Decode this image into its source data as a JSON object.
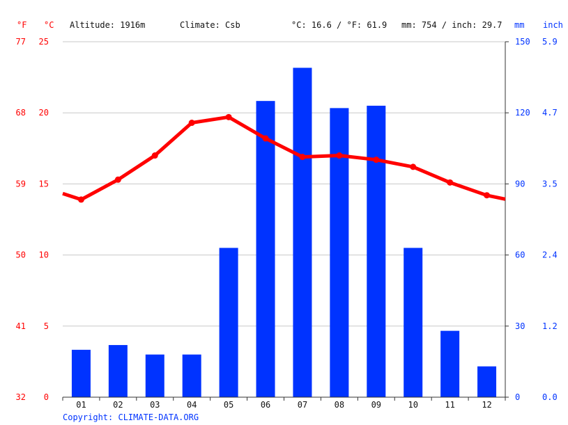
{
  "header": {
    "unit_f": "°F",
    "unit_c": "°C",
    "altitude": "Altitude: 1916m",
    "climate": "Climate: Csb",
    "temp_avg": "°C: 16.6 / °F: 61.9",
    "precip_total": "mm: 754 / inch: 29.7",
    "unit_mm": "mm",
    "unit_inch": "inch"
  },
  "copyright": "Copyright: CLIMATE-DATA.ORG",
  "colors": {
    "temperature": "#ff0000",
    "precipitation": "#0033ff",
    "grid": "#c8c8c8"
  },
  "chart_data": {
    "type": "bar+line",
    "categories": [
      "01",
      "02",
      "03",
      "04",
      "05",
      "06",
      "07",
      "08",
      "09",
      "10",
      "11",
      "12"
    ],
    "series": [
      {
        "type": "bar",
        "axis": "right",
        "unit": "mm",
        "values": [
          20,
          22,
          18,
          18,
          63,
          125,
          139,
          122,
          123,
          63,
          28,
          13
        ]
      },
      {
        "type": "line",
        "axis": "left",
        "unit": "°C",
        "values": [
          13.9,
          15.3,
          17.0,
          19.3,
          19.7,
          18.2,
          16.9,
          17.0,
          16.7,
          16.2,
          15.1,
          14.2
        ]
      }
    ],
    "y_left": {
      "range": [
        0,
        25
      ],
      "ticks_c": [
        "0",
        "5",
        "10",
        "15",
        "20",
        "25"
      ],
      "ticks_f": [
        "32",
        "41",
        "50",
        "59",
        "68",
        "77"
      ]
    },
    "y_right": {
      "range": [
        0,
        150
      ],
      "ticks_mm": [
        "0",
        "30",
        "60",
        "90",
        "120",
        "150"
      ],
      "ticks_inch": [
        "0.0",
        "1.2",
        "2.4",
        "3.5",
        "4.7",
        "5.9"
      ]
    },
    "grid": true
  }
}
